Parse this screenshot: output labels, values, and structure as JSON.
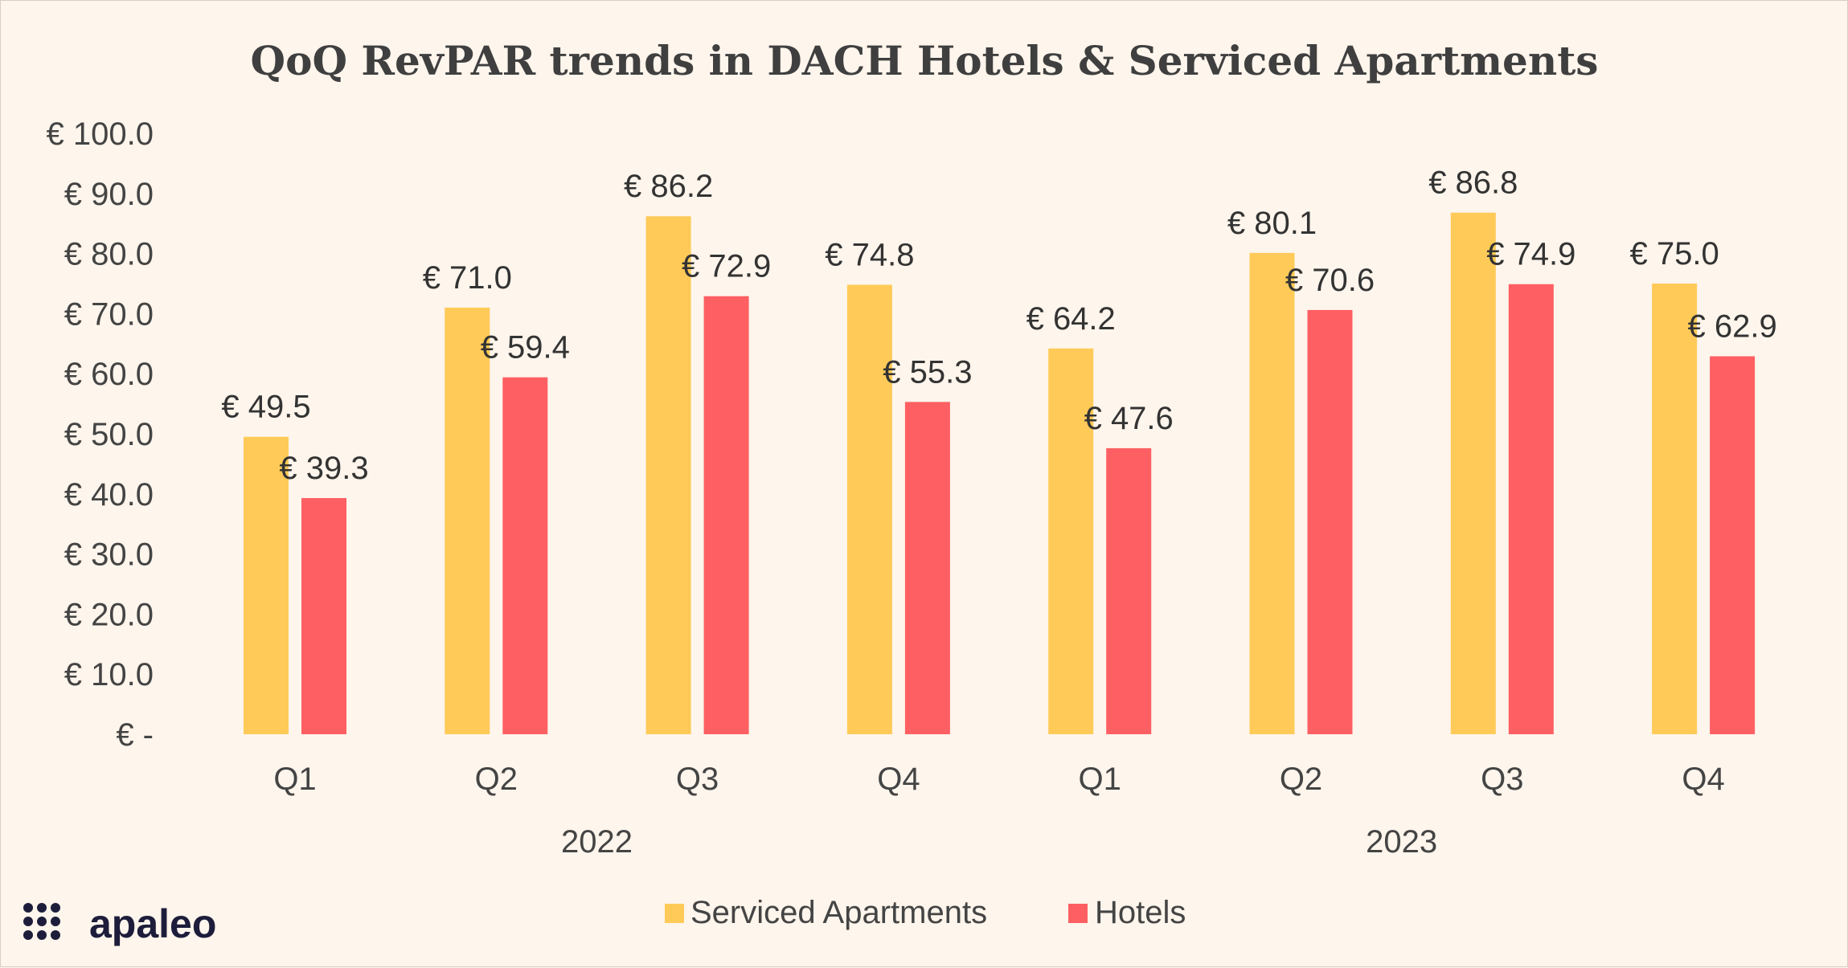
{
  "colors": {
    "serviced": "#ffca58",
    "hotels": "#fe5f62",
    "background": "#fef5ec",
    "logo": "#1d1d3b"
  },
  "brand": {
    "name": "apaleo",
    "icon": "dots-grid-icon"
  },
  "chart_data": {
    "type": "bar",
    "title": "QoQ RevPAR trends in DACH Hotels & Serviced Apartments",
    "categories": [
      "Q1",
      "Q2",
      "Q3",
      "Q4",
      "Q1",
      "Q2",
      "Q3",
      "Q4"
    ],
    "groups": [
      {
        "label": "2022",
        "categories": [
          "Q1",
          "Q2",
          "Q3",
          "Q4"
        ]
      },
      {
        "label": "2023",
        "categories": [
          "Q1",
          "Q2",
          "Q3",
          "Q4"
        ]
      }
    ],
    "series": [
      {
        "name": "Serviced Apartments",
        "values": [
          49.5,
          71.0,
          86.2,
          74.8,
          64.2,
          80.1,
          86.8,
          75.0
        ],
        "labels": [
          "€ 49.5",
          "€ 71.0",
          "€ 86.2",
          "€ 74.8",
          "€ 64.2",
          "€ 80.1",
          "€ 86.8",
          "€ 75.0"
        ]
      },
      {
        "name": "Hotels",
        "values": [
          39.3,
          59.4,
          72.9,
          55.3,
          47.6,
          70.6,
          74.9,
          62.9
        ],
        "labels": [
          "€ 39.3",
          "€ 59.4",
          "€ 72.9",
          "€ 55.3",
          "€ 47.6",
          "€ 70.6",
          "€ 74.9",
          "€ 62.9"
        ]
      }
    ],
    "ylim": [
      0,
      100
    ],
    "yticks": [
      0,
      10,
      20,
      30,
      40,
      50,
      60,
      70,
      80,
      90,
      100
    ],
    "ytick_labels": [
      "€ -",
      "€ 10.0",
      "€ 20.0",
      "€ 30.0",
      "€ 40.0",
      "€ 50.0",
      "€ 60.0",
      "€ 70.0",
      "€ 80.0",
      "€ 90.0",
      "€ 100.0"
    ],
    "xlabel": "",
    "ylabel": "",
    "grid": false,
    "legend": "bottom-center"
  }
}
